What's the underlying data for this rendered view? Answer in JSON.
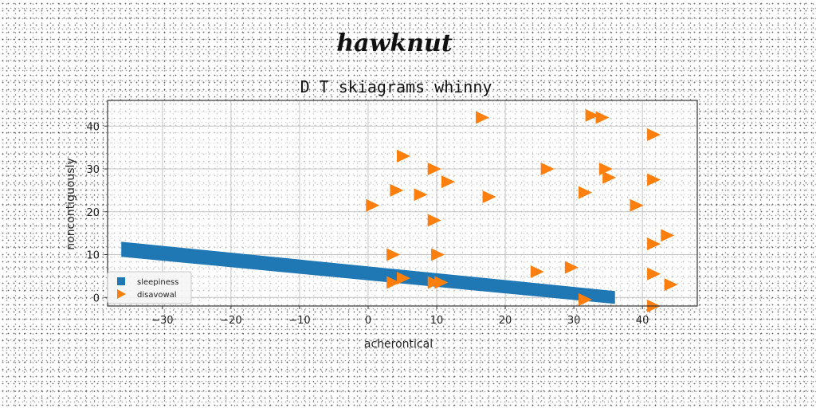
{
  "header": {
    "title": "hawknut"
  },
  "chart_data": {
    "type": "scatter",
    "title": "D T skiagrams whinny",
    "xlabel": "acherontical",
    "ylabel": "noncontiguously",
    "xlim": [
      -38,
      48
    ],
    "ylim": [
      -2,
      46
    ],
    "xticks": [
      -30,
      -20,
      -10,
      0,
      10,
      20,
      30,
      40
    ],
    "yticks": [
      0,
      10,
      20,
      30,
      40
    ],
    "xtick_labels": [
      "−30",
      "−20",
      "−10",
      "0",
      "10",
      "20",
      "30",
      "40"
    ],
    "ytick_labels": [
      "0",
      "10",
      "20",
      "30",
      "40"
    ],
    "grid": true,
    "legend_position": "lower-left",
    "series": [
      {
        "name": "sleepiness",
        "kind": "band",
        "marker": "square",
        "color": "#1f77b4",
        "x": [
          -36,
          36
        ],
        "y_upper": [
          13,
          1.5
        ],
        "y_lower": [
          9.5,
          -1.5
        ]
      },
      {
        "name": "disavowal",
        "kind": "points",
        "marker": "triangle-right",
        "color": "#ff7f0e",
        "x": [
          16.5,
          32.5,
          34,
          41.5,
          5,
          9.5,
          26,
          34.5,
          35,
          41.5,
          11.5,
          4,
          7.5,
          31.5,
          17.5,
          0.5,
          39,
          9.5,
          43.5,
          41.5,
          3.5,
          10,
          29.5,
          24.5,
          41.5,
          44,
          5,
          3.5,
          9.5,
          10.5,
          31.5,
          41.5
        ],
        "y": [
          42,
          42.5,
          42,
          38,
          33,
          30,
          30,
          30,
          28,
          27.5,
          27,
          25,
          24,
          24.5,
          23.5,
          21.5,
          21.5,
          18,
          14.5,
          12.5,
          10,
          10,
          7,
          6,
          5.5,
          3,
          4.5,
          3.5,
          3.5,
          3.5,
          -0.5,
          -2
        ]
      }
    ]
  }
}
